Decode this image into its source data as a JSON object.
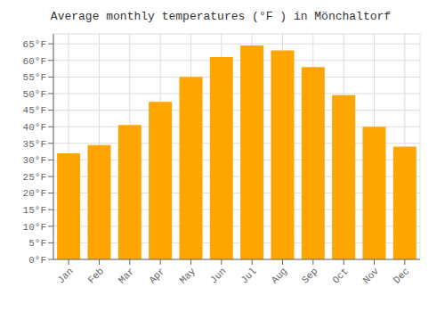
{
  "chart_data": {
    "type": "bar",
    "title": "Average monthly temperatures (°F ) in Mönchaltorf",
    "categories": [
      "Jan",
      "Feb",
      "Mar",
      "Apr",
      "May",
      "Jun",
      "Jul",
      "Aug",
      "Sep",
      "Oct",
      "Nov",
      "Dec"
    ],
    "values": [
      32,
      34.5,
      40.5,
      47.5,
      55,
      61,
      64.5,
      63,
      58,
      49.5,
      40,
      34
    ],
    "color": "#FFA500",
    "ylim": [
      0,
      68
    ],
    "yticks": [
      {
        "value": 0,
        "label": "0°F"
      },
      {
        "value": 5,
        "label": "5°F"
      },
      {
        "value": 10,
        "label": "10°F"
      },
      {
        "value": 15,
        "label": "15°F"
      },
      {
        "value": 20,
        "label": "20°F"
      },
      {
        "value": 25,
        "label": "25°F"
      },
      {
        "value": 30,
        "label": "30°F"
      },
      {
        "value": 35,
        "label": "35°F"
      },
      {
        "value": 40,
        "label": "40°F"
      },
      {
        "value": 45,
        "label": "45°F"
      },
      {
        "value": 50,
        "label": "50°F"
      },
      {
        "value": 55,
        "label": "55°F"
      },
      {
        "value": 60,
        "label": "60°F"
      },
      {
        "value": 65,
        "label": "65°F"
      }
    ],
    "grid": true
  }
}
